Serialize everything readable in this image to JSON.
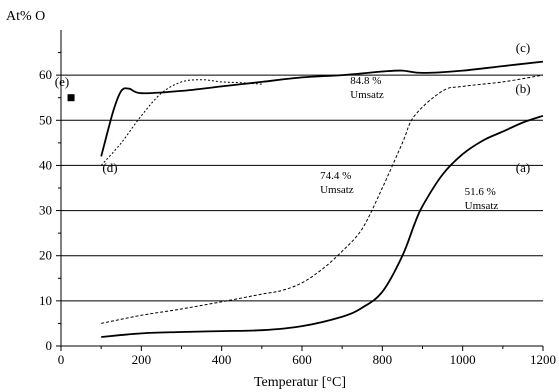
{
  "chart_data": {
    "type": "line",
    "ylabel": "At% O",
    "xlabel": "Temperatur [°C]",
    "xlim": [
      0,
      1200
    ],
    "ylim": [
      0,
      70
    ],
    "xticks": [
      0,
      200,
      400,
      600,
      800,
      1000,
      1200
    ],
    "yticks": [
      0,
      10,
      20,
      30,
      40,
      50,
      60
    ],
    "grid": "horizontal",
    "series": [
      {
        "name": "(a)",
        "style": "solid",
        "points": [
          [
            100,
            2
          ],
          [
            200,
            2.8
          ],
          [
            300,
            3.1
          ],
          [
            400,
            3.3
          ],
          [
            500,
            3.5
          ],
          [
            600,
            4.4
          ],
          [
            700,
            6.5
          ],
          [
            750,
            8.5
          ],
          [
            800,
            12
          ],
          [
            850,
            20
          ],
          [
            880,
            27
          ],
          [
            900,
            31
          ],
          [
            950,
            38
          ],
          [
            1000,
            42.5
          ],
          [
            1050,
            45.5
          ],
          [
            1100,
            47.5
          ],
          [
            1150,
            49.5
          ],
          [
            1200,
            51
          ]
        ],
        "label_text": "(a)"
      },
      {
        "name": "(b)",
        "style": "dashed",
        "points": [
          [
            100,
            5
          ],
          [
            200,
            6.8
          ],
          [
            300,
            8.2
          ],
          [
            400,
            9.8
          ],
          [
            500,
            11.5
          ],
          [
            550,
            12.3
          ],
          [
            600,
            14
          ],
          [
            650,
            17
          ],
          [
            700,
            21
          ],
          [
            750,
            26
          ],
          [
            800,
            35
          ],
          [
            850,
            45
          ],
          [
            880,
            51
          ],
          [
            950,
            56.5
          ],
          [
            1000,
            57.5
          ],
          [
            1100,
            58.5
          ],
          [
            1200,
            60
          ]
        ],
        "label_text": "(b)"
      },
      {
        "name": "(c)",
        "style": "solid",
        "points": [
          [
            100,
            42
          ],
          [
            130,
            52
          ],
          [
            150,
            56.5
          ],
          [
            170,
            57
          ],
          [
            200,
            56
          ],
          [
            300,
            56.5
          ],
          [
            400,
            57.5
          ],
          [
            500,
            58.5
          ],
          [
            600,
            59.5
          ],
          [
            700,
            60
          ],
          [
            800,
            60.8
          ],
          [
            850,
            61
          ],
          [
            900,
            60.5
          ],
          [
            1000,
            61
          ],
          [
            1100,
            62
          ],
          [
            1200,
            63
          ]
        ],
        "label_text": "(c)"
      },
      {
        "name": "(d)",
        "style": "dotted",
        "points": [
          [
            100,
            40
          ],
          [
            150,
            45
          ],
          [
            200,
            51
          ],
          [
            250,
            56
          ],
          [
            300,
            58.5
          ],
          [
            350,
            59
          ],
          [
            400,
            58.5
          ],
          [
            450,
            58.3
          ],
          [
            500,
            58
          ]
        ],
        "label_text": "(d)"
      },
      {
        "name": "(e)",
        "style": "marker",
        "points": [
          [
            25,
            55
          ]
        ],
        "label_text": "(e)"
      }
    ],
    "annotations": [
      {
        "text_line1": "84.8 %",
        "text_line2": "Umsatz",
        "x": 720,
        "y": 58
      },
      {
        "text_line1": "74.4 %",
        "text_line2": "Umsatz",
        "x": 645,
        "y": 37
      },
      {
        "text_line1": "51.6 %",
        "text_line2": "Umsatz",
        "x": 1005,
        "y": 33.5
      }
    ]
  }
}
